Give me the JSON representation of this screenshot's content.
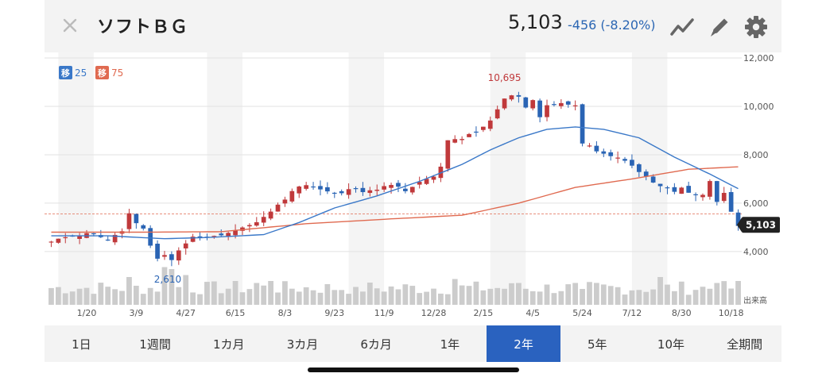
{
  "header": {
    "title": "ソフトＢＧ",
    "price": "5,103",
    "change": "-456 (-8.20%)",
    "icons": [
      "close-icon",
      "trend-line-icon",
      "pencil-icon",
      "gear-icon"
    ],
    "accent_color": "#2b66b3"
  },
  "tabs": [
    {
      "label": "1日"
    },
    {
      "label": "1週間"
    },
    {
      "label": "1カ月"
    },
    {
      "label": "3カ月"
    },
    {
      "label": "6カ月"
    },
    {
      "label": "1年"
    },
    {
      "label": "2年",
      "active": true
    },
    {
      "label": "5年"
    },
    {
      "label": "10年"
    },
    {
      "label": "全期間"
    }
  ],
  "chart_data": {
    "type": "candlestick",
    "y_ticks": [
      "12,000",
      "10,000",
      "8,000",
      "6,000",
      "4,000"
    ],
    "ylim": [
      3800,
      12000
    ],
    "x_ticks": [
      "1/20",
      "3/9",
      "4/27",
      "6/15",
      "8/3",
      "9/23",
      "11/9",
      "12/28",
      "2/15",
      "4/5",
      "5/24",
      "7/12",
      "8/30",
      "10/18"
    ],
    "volume_label": "出来高",
    "legend": [
      {
        "badge": "移",
        "value": "25",
        "color": "#3a78c8"
      },
      {
        "badge": "移",
        "value": "75",
        "color": "#e06a50"
      }
    ],
    "annotations": {
      "high": "10,695",
      "low": "2,610",
      "last": "5,103",
      "last_value": 5103,
      "ref_value": 5559
    },
    "colors": {
      "up": "#c0393b",
      "down": "#2a64b4",
      "ma25": "#3a78c8",
      "ma75": "#e06a50",
      "volume": "#cccccc"
    },
    "period_weeks": 98,
    "close_anchors": [
      [
        0,
        4400
      ],
      [
        3,
        4650
      ],
      [
        6,
        4750
      ],
      [
        8,
        4500
      ],
      [
        10,
        4900
      ],
      [
        11,
        5600
      ],
      [
        12,
        5200
      ],
      [
        13,
        5000
      ],
      [
        14,
        4300
      ],
      [
        15,
        3700
      ],
      [
        16,
        3900
      ],
      [
        17,
        3600
      ],
      [
        18,
        4000
      ],
      [
        19,
        4300
      ],
      [
        20,
        4600
      ],
      [
        21,
        4500
      ],
      [
        23,
        4600
      ],
      [
        25,
        4750
      ],
      [
        27,
        5050
      ],
      [
        29,
        5200
      ],
      [
        31,
        5700
      ],
      [
        33,
        6200
      ],
      [
        35,
        6700
      ],
      [
        37,
        6700
      ],
      [
        39,
        6500
      ],
      [
        41,
        6400
      ],
      [
        42,
        6600
      ],
      [
        44,
        6500
      ],
      [
        46,
        6600
      ],
      [
        48,
        6800
      ],
      [
        50,
        6500
      ],
      [
        52,
        6900
      ],
      [
        54,
        7100
      ],
      [
        55,
        7500
      ],
      [
        56,
        8600
      ],
      [
        58,
        8700
      ],
      [
        60,
        8900
      ],
      [
        62,
        9400
      ],
      [
        63,
        9900
      ],
      [
        64,
        10300
      ],
      [
        65,
        10500
      ],
      [
        66,
        10400
      ],
      [
        67,
        10000
      ],
      [
        68,
        10300
      ],
      [
        69,
        9600
      ],
      [
        70,
        10050
      ],
      [
        72,
        10100
      ],
      [
        74,
        10050
      ],
      [
        75,
        8500
      ],
      [
        77,
        8200
      ],
      [
        79,
        8000
      ],
      [
        81,
        7700
      ],
      [
        83,
        7300
      ],
      [
        85,
        6900
      ],
      [
        86,
        6700
      ],
      [
        88,
        6500
      ],
      [
        89,
        6600
      ],
      [
        90,
        6400
      ],
      [
        92,
        6400
      ],
      [
        93,
        6900
      ],
      [
        94,
        6100
      ],
      [
        95,
        6400
      ],
      [
        96,
        5600
      ],
      [
        97,
        5103
      ]
    ],
    "ma25_anchors": [
      [
        0,
        4650
      ],
      [
        8,
        4650
      ],
      [
        16,
        4530
      ],
      [
        22,
        4580
      ],
      [
        30,
        4700
      ],
      [
        35,
        5200
      ],
      [
        40,
        5800
      ],
      [
        46,
        6300
      ],
      [
        52,
        6900
      ],
      [
        58,
        7600
      ],
      [
        62,
        8200
      ],
      [
        66,
        8700
      ],
      [
        70,
        9050
      ],
      [
        74,
        9150
      ],
      [
        78,
        9050
      ],
      [
        83,
        8700
      ],
      [
        88,
        7900
      ],
      [
        93,
        7200
      ],
      [
        97,
        6600
      ]
    ],
    "ma75_anchors": [
      [
        0,
        4800
      ],
      [
        12,
        4800
      ],
      [
        24,
        4820
      ],
      [
        36,
        5150
      ],
      [
        48,
        5350
      ],
      [
        58,
        5500
      ],
      [
        66,
        6000
      ],
      [
        74,
        6650
      ],
      [
        82,
        7000
      ],
      [
        90,
        7400
      ],
      [
        97,
        7500
      ]
    ],
    "volume_spikes": [
      [
        11,
        0.7
      ],
      [
        16,
        0.95
      ],
      [
        17,
        0.9
      ],
      [
        19,
        0.75
      ],
      [
        26,
        0.6
      ],
      [
        29,
        0.55
      ],
      [
        31,
        0.6
      ],
      [
        43,
        0.45
      ],
      [
        57,
        0.65
      ],
      [
        66,
        0.55
      ],
      [
        75,
        0.4
      ],
      [
        86,
        0.7
      ],
      [
        94,
        0.55
      ],
      [
        97,
        0.6
      ]
    ]
  }
}
